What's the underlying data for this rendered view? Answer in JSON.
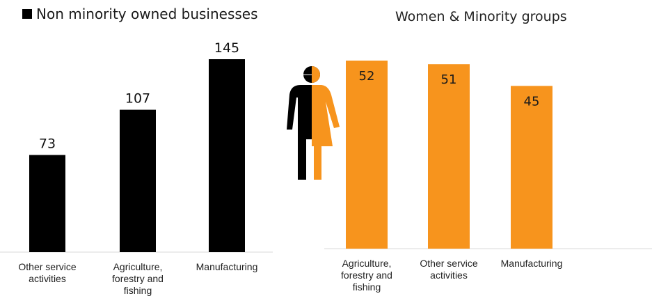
{
  "chart_data": [
    {
      "type": "bar",
      "title": "",
      "legend": {
        "entries": [
          "Non minority owned businesses"
        ],
        "placement": "top-left"
      },
      "categories": [
        [
          "Other service",
          "activities"
        ],
        [
          "Agriculture,",
          "forestry and",
          "fishing"
        ],
        [
          "Manufacturing"
        ]
      ],
      "series": [
        {
          "name": "Non minority owned businesses",
          "values": [
            73,
            107,
            145
          ]
        }
      ],
      "ylim": [
        0,
        145
      ],
      "color": "#000000",
      "label_color": "#111111",
      "grid": false
    },
    {
      "type": "bar",
      "title": "Women & Minority groups",
      "categories": [
        [
          "Agriculture,",
          "forestry and",
          "fishing"
        ],
        [
          "Other service",
          "activities"
        ],
        [
          "Manufacturing"
        ]
      ],
      "series": [
        {
          "values": [
            52,
            51,
            45
          ]
        }
      ],
      "ylim": [
        0,
        52
      ],
      "color": "#f7941d",
      "label_color": "#1a1a1a",
      "grid": false
    }
  ],
  "icons": {
    "gender_split": "male-female-split-icon",
    "male_color": "#000000",
    "female_color": "#f7941d"
  }
}
